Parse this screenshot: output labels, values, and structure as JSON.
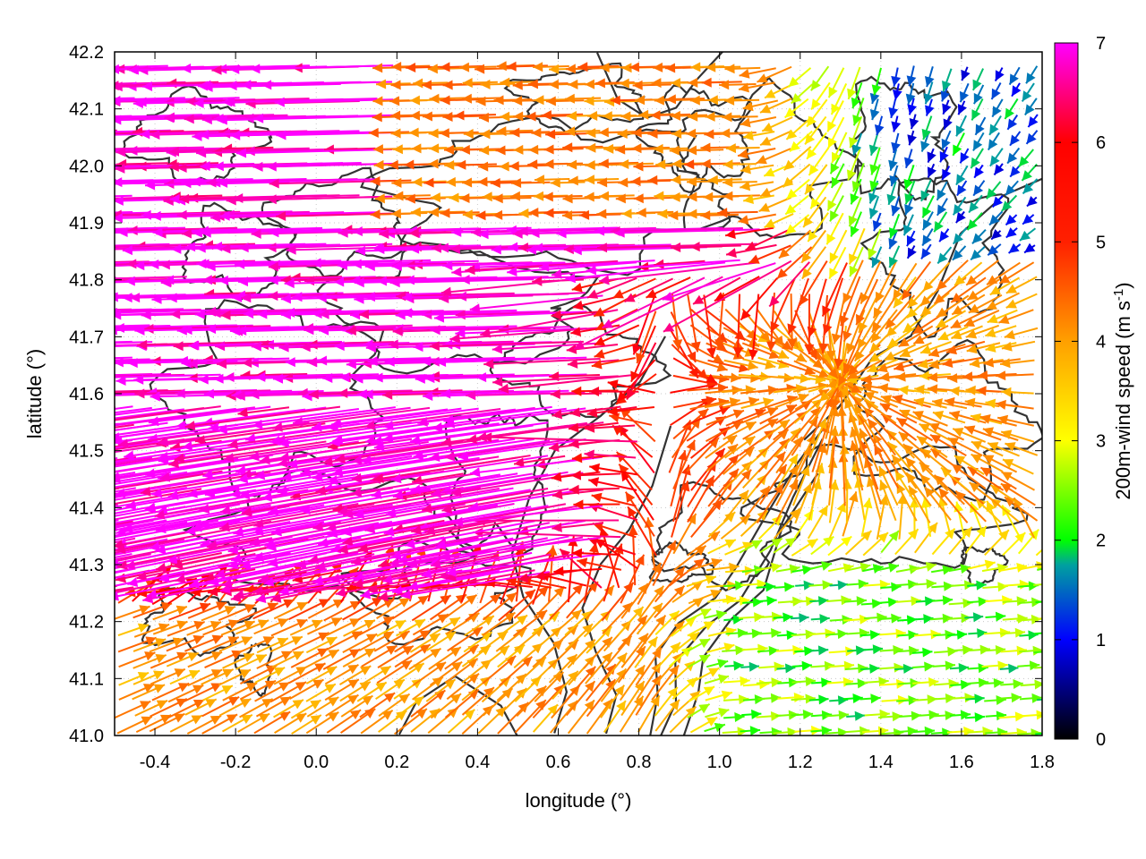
{
  "chart_data": {
    "type": "vector-field",
    "xlabel": "longitude (°)",
    "ylabel": "latitude (°)",
    "xlim": [
      -0.5,
      1.8
    ],
    "ylim": [
      41.0,
      42.2
    ],
    "x_ticks": [
      "-0.4",
      "-0.2",
      "0.0",
      "0.2",
      "0.4",
      "0.6",
      "0.8",
      "1.0",
      "1.2",
      "1.4",
      "1.6",
      "1.8"
    ],
    "y_ticks": [
      "41.0",
      "41.1",
      "41.2",
      "41.3",
      "41.4",
      "41.5",
      "41.6",
      "41.7",
      "41.8",
      "41.9",
      "42.0",
      "42.1",
      "42.2"
    ],
    "colorbar": {
      "label_main": "200m-wind speed (m s",
      "label_exp": "-1",
      "label_close": ")",
      "range": [
        0,
        7
      ],
      "ticks": [
        "0",
        "1",
        "2",
        "3",
        "4",
        "5",
        "6",
        "7"
      ],
      "colors": [
        "#000000",
        "#0000ff",
        "#00a0a0",
        "#00ff00",
        "#ffff00",
        "#ffa000",
        "#ff0000",
        "#ff00ff"
      ]
    },
    "grid": "dotted",
    "contour_color": "#333333",
    "wind_field_summary": [
      {
        "region": "west, lat 41.2–42.2",
        "direction": "westward",
        "speed": 7
      },
      {
        "region": "east, lat 41.0–41.35",
        "direction": "eastward",
        "speed": 2.5
      },
      {
        "region": "center, lon 0.8–1.4, lat 41.3–41.8",
        "direction": "convergent",
        "speed": 3.5
      },
      {
        "region": "northeast",
        "direction": "variable",
        "speed": 1.5
      }
    ]
  }
}
